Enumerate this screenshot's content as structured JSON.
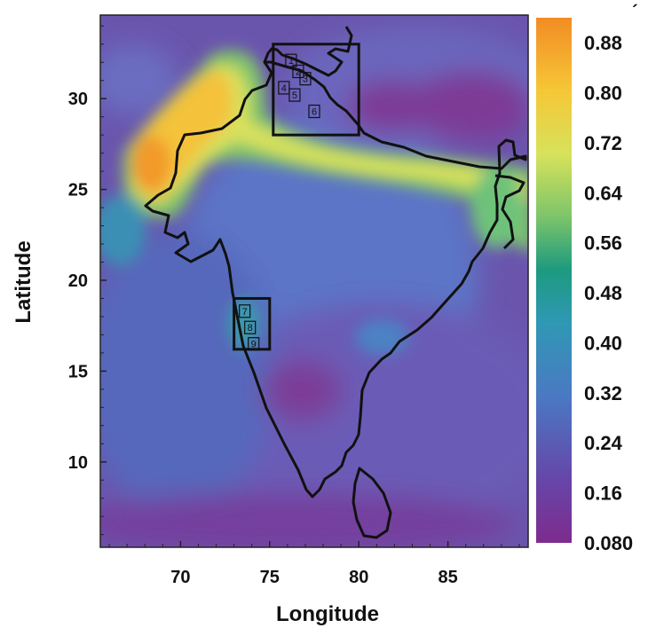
{
  "map": {
    "x_axis": {
      "title": "Longitude",
      "ticks": [
        70,
        75,
        80,
        85
      ],
      "tick_labels": [
        "70",
        "75",
        "80",
        "85"
      ],
      "range": [
        65.5,
        89.5
      ]
    },
    "y_axis": {
      "title": "Latitude",
      "ticks": [
        10,
        15,
        20,
        25,
        30
      ],
      "tick_labels": [
        "10",
        "15",
        "20",
        "25",
        "30"
      ],
      "range": [
        5.3,
        34.6
      ]
    },
    "colorbar": {
      "labels": [
        "0.88",
        "0.80",
        "0.72",
        "0.64",
        "0.56",
        "0.48",
        "0.40",
        "0.32",
        "0.24",
        "0.16",
        "0.080"
      ],
      "values": [
        0.88,
        0.8,
        0.72,
        0.64,
        0.56,
        0.48,
        0.4,
        0.32,
        0.24,
        0.16,
        0.08
      ],
      "range": [
        0.08,
        0.92
      ],
      "colors": [
        "#7e2b8e",
        "#6646a8",
        "#4a79c3",
        "#2f98b4",
        "#1d9a7f",
        "#7cc46a",
        "#d7e25b",
        "#f6c737",
        "#f28c24"
      ]
    },
    "study_regions": [
      {
        "lon_min": 75.2,
        "lon_max": 80.0,
        "lat_min": 28.0,
        "lat_max": 33.0
      },
      {
        "lon_min": 73.0,
        "lon_max": 75.0,
        "lat_min": 16.2,
        "lat_max": 19.0
      }
    ],
    "sites": [
      {
        "label": "1",
        "lon": 76.2,
        "lat": 32.1
      },
      {
        "label": "2",
        "lon": 76.6,
        "lat": 31.5
      },
      {
        "label": "3",
        "lon": 77.0,
        "lat": 31.1
      },
      {
        "label": "4",
        "lon": 75.8,
        "lat": 30.6
      },
      {
        "label": "5",
        "lon": 76.4,
        "lat": 30.2
      },
      {
        "label": "6",
        "lon": 77.5,
        "lat": 29.3
      },
      {
        "label": "7",
        "lon": 73.6,
        "lat": 18.3
      },
      {
        "label": "8",
        "lon": 73.9,
        "lat": 17.4
      },
      {
        "label": "9",
        "lon": 74.1,
        "lat": 16.5
      }
    ]
  }
}
